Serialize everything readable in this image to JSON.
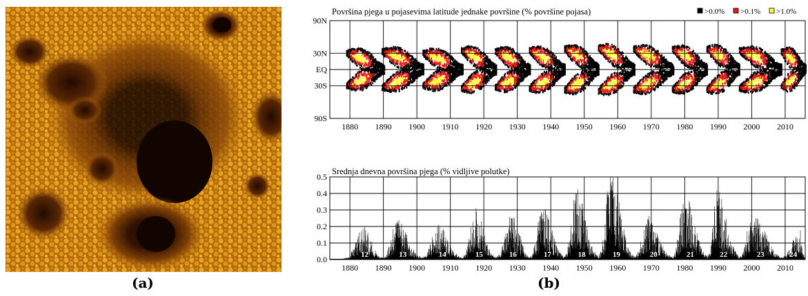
{
  "panels": {
    "a": {
      "label": "(a)"
    },
    "b": {
      "label": "(b)"
    }
  },
  "colors": {
    "photo_dark": "#120500",
    "photo_mid": "#6e3406",
    "photo_bright": "#e8a21c",
    "level_low": "#000000",
    "level_mid": "#e41a1c",
    "level_high": "#ffff33"
  },
  "chart_data": [
    {
      "type": "heatmap",
      "title": "Površina pjega u pojasevima latitude jednake površine (% površine pojasa)",
      "xlabel": "",
      "ylabel": "",
      "xlim": [
        1874,
        2016
      ],
      "ylim": [
        -90,
        90
      ],
      "y_ticks": [
        {
          "value": 90,
          "label": "90N"
        },
        {
          "value": 30,
          "label": "30N"
        },
        {
          "value": 0,
          "label": "EQ"
        },
        {
          "value": -30,
          "label": "30S"
        },
        {
          "value": -90,
          "label": "90S"
        }
      ],
      "x_ticks": [
        1880,
        1890,
        1900,
        1910,
        1920,
        1930,
        1940,
        1950,
        1960,
        1970,
        1980,
        1990,
        2000,
        2010
      ],
      "legend": [
        {
          "label": ">0.0%",
          "color": "#000000"
        },
        {
          "label": ">0.1%",
          "color": "#e41a1c"
        },
        {
          "label": ">1.0%",
          "color": "#ffff33"
        }
      ],
      "legend_position": "top-right",
      "grid": true,
      "cycles": [
        {
          "start": 1878.9,
          "end": 1890.2,
          "max_latitude": 30
        },
        {
          "start": 1889.5,
          "end": 1902.0,
          "max_latitude": 33
        },
        {
          "start": 1901.7,
          "end": 1913.6,
          "max_latitude": 30
        },
        {
          "start": 1913.2,
          "end": 1923.6,
          "max_latitude": 35
        },
        {
          "start": 1923.3,
          "end": 1933.8,
          "max_latitude": 33
        },
        {
          "start": 1933.5,
          "end": 1944.2,
          "max_latitude": 35
        },
        {
          "start": 1944.0,
          "end": 1954.3,
          "max_latitude": 38
        },
        {
          "start": 1954.1,
          "end": 1964.9,
          "max_latitude": 40
        },
        {
          "start": 1964.6,
          "end": 1976.5,
          "max_latitude": 38
        },
        {
          "start": 1976.2,
          "end": 1986.7,
          "max_latitude": 37
        },
        {
          "start": 1986.5,
          "end": 1996.4,
          "max_latitude": 38
        },
        {
          "start": 1996.2,
          "end": 2008.9,
          "max_latitude": 35
        },
        {
          "start": 2008.7,
          "end": 2016.0,
          "max_latitude": 32
        }
      ]
    },
    {
      "type": "area",
      "title": "Srednja dnevna površina pjega (% vidljive polutke)",
      "xlabel": "",
      "ylabel": "",
      "xlim": [
        1874,
        2016
      ],
      "ylim": [
        0,
        0.5
      ],
      "y_ticks": [
        "0.0",
        "0.1",
        "0.2",
        "0.3",
        "0.4",
        "0.5"
      ],
      "x_ticks": [
        1880,
        1890,
        1900,
        1910,
        1920,
        1930,
        1940,
        1950,
        1960,
        1970,
        1980,
        1990,
        2000,
        2010
      ],
      "grid": true,
      "cycles": [
        {
          "number": "12",
          "start": 1878.9,
          "peak_year": 1883.9,
          "end": 1889.9,
          "peak": 0.19
        },
        {
          "number": "13",
          "start": 1889.9,
          "peak_year": 1894.1,
          "end": 1901.7,
          "peak": 0.22
        },
        {
          "number": "14",
          "start": 1901.7,
          "peak_year": 1906.2,
          "end": 1913.6,
          "peak": 0.2
        },
        {
          "number": "15",
          "start": 1913.6,
          "peak_year": 1917.6,
          "end": 1923.6,
          "peak": 0.28
        },
        {
          "number": "16",
          "start": 1923.6,
          "peak_year": 1928.4,
          "end": 1933.8,
          "peak": 0.25
        },
        {
          "number": "17",
          "start": 1933.8,
          "peak_year": 1937.4,
          "end": 1944.2,
          "peak": 0.3
        },
        {
          "number": "18",
          "start": 1944.2,
          "peak_year": 1947.5,
          "end": 1954.3,
          "peak": 0.4
        },
        {
          "number": "19",
          "start": 1954.3,
          "peak_year": 1957.9,
          "end": 1964.9,
          "peak": 0.5
        },
        {
          "number": "20",
          "start": 1964.9,
          "peak_year": 1968.9,
          "end": 1976.5,
          "peak": 0.24
        },
        {
          "number": "21",
          "start": 1976.5,
          "peak_year": 1979.9,
          "end": 1986.8,
          "peak": 0.38
        },
        {
          "number": "22",
          "start": 1986.8,
          "peak_year": 1989.6,
          "end": 1996.4,
          "peak": 0.39
        },
        {
          "number": "23",
          "start": 1996.4,
          "peak_year": 2000.3,
          "end": 2008.9,
          "peak": 0.28
        },
        {
          "number": "24",
          "start": 2008.9,
          "peak_year": 2014.3,
          "end": 2016.0,
          "peak": 0.17
        }
      ]
    }
  ]
}
